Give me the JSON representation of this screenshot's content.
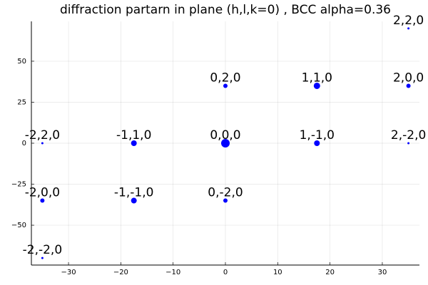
{
  "chart_data": {
    "type": "scatter",
    "title": "diffraction partarn in plane (h,l,k=0) , BCC alpha=0.36",
    "x": [
      0,
      17.5,
      35,
      35,
      -35,
      -17.5,
      0,
      17.5,
      35,
      -35,
      -17.5,
      0,
      -35
    ],
    "values": [
      35,
      35,
      35,
      70,
      0,
      0,
      0,
      0,
      0,
      -35,
      -35,
      -35,
      -70
    ],
    "sizes": [
      3,
      4.5,
      3,
      1.5,
      1.5,
      4,
      6,
      4,
      1.5,
      3,
      4,
      3,
      1.5
    ],
    "point_labels": [
      "0,2,0",
      "1,1,0",
      "2,0,0",
      "2,2,0",
      "-2,2,0",
      "-1,1,0",
      "0,0,0",
      "1,-1,0",
      "2,-2,0",
      "-2,0,0",
      "-1,-1,0",
      "0,-2,0",
      "-2,-2,0"
    ],
    "color": "#0000ff",
    "xlim": [
      -37.1,
      37.1
    ],
    "ylim": [
      -74.3,
      74.3
    ],
    "xticks": [
      {
        "value": -30,
        "label": "−30"
      },
      {
        "value": -20,
        "label": "−20"
      },
      {
        "value": -10,
        "label": "−10"
      },
      0,
      10,
      20,
      30
    ],
    "yticks": [
      {
        "value": -50,
        "label": "−50"
      },
      {
        "value": -25,
        "label": "−25"
      },
      0,
      25,
      50
    ],
    "grid": true
  }
}
